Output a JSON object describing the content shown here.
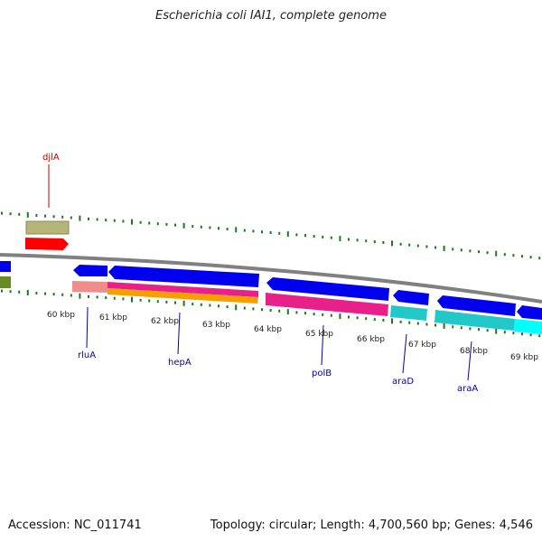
{
  "title": "Escherichia coli IAI1, complete genome",
  "footer": {
    "accession": "Accession: NC_011741",
    "summary": "Topology: circular; Length: 4,700,560 bp; Genes: 4,546"
  },
  "ruler_labels": [
    "60 kbp",
    "61 kbp",
    "62 kbp",
    "63 kbp",
    "64 kbp",
    "65 kbp",
    "66 kbp",
    "67 kbp",
    "68 kbp",
    "69 kbp"
  ],
  "genes": [
    {
      "name": "djlA",
      "color": "#cc0000"
    },
    {
      "name": "rluA",
      "color": "#0000aa"
    },
    {
      "name": "hepA",
      "color": "#0000aa"
    },
    {
      "name": "polB",
      "color": "#0000aa"
    },
    {
      "name": "araD",
      "color": "#0000aa"
    },
    {
      "name": "araA",
      "color": "#0000aa"
    }
  ],
  "colors": {
    "tick": "#1a7a1a",
    "backbone": "#808080",
    "cds_forward": "#ff0000",
    "cds_reverse": "#0000ee",
    "cog_olive": "#b5b57a",
    "cog_pink": "#f08c8c",
    "cog_magenta": "#e8208a",
    "cog_orange": "#f5a000",
    "cog_cyan": "#22c8c8",
    "cog_brightcyan": "#00ffff",
    "cog_darkolive": "#6a8a2a"
  }
}
